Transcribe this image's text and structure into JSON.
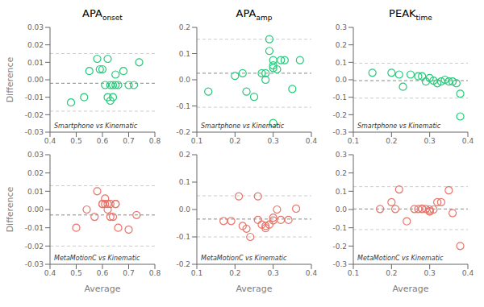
{
  "chart_data": [
    {
      "type": "scatter",
      "title": "APA",
      "subtitle": "onset",
      "annotations": [
        "Smartphone vs Kinematic"
      ],
      "ylabel": "Difference",
      "color": "#26c97a",
      "grid": false,
      "xlim": [
        0.4,
        0.8
      ],
      "ylim": [
        -0.03,
        0.03
      ],
      "xticks": [
        0.4,
        0.5,
        0.6,
        0.7,
        0.8
      ],
      "yticks": [
        -0.03,
        -0.02,
        -0.01,
        {
          "value": 0,
          "label": "0.00"
        },
        0.01,
        0.02,
        0.03
      ],
      "mean_line": -0.002,
      "upper_loa": 0.015,
      "lower_loa": -0.018,
      "x": [
        0.48,
        0.53,
        0.55,
        0.58,
        0.59,
        0.6,
        0.61,
        0.62,
        0.62,
        0.63,
        0.63,
        0.64,
        0.64,
        0.65,
        0.65,
        0.66,
        0.68,
        0.7,
        0.72,
        0.74
      ],
      "values": [
        -0.013,
        -0.01,
        0.005,
        0.012,
        0.006,
        0.006,
        -0.003,
        0.012,
        -0.01,
        -0.003,
        -0.012,
        -0.003,
        -0.01,
        0.003,
        -0.003,
        -0.003,
        0.005,
        -0.003,
        -0.003,
        0.01
      ]
    },
    {
      "type": "scatter",
      "title": "APA",
      "subtitle": "amp",
      "annotations": [
        "Smartphone vs Kinematic"
      ],
      "color": "#26c97a",
      "grid": false,
      "xlim": [
        0.1,
        0.4
      ],
      "ylim": [
        -0.2,
        0.2
      ],
      "xticks": [
        0.1,
        0.2,
        0.3,
        0.4
      ],
      "yticks": [
        -0.2,
        -0.1,
        {
          "value": 0,
          "label": "0.0"
        },
        0.1,
        0.2
      ],
      "mean_line": 0.025,
      "upper_loa": 0.155,
      "lower_loa": -0.105,
      "x": [
        0.13,
        0.2,
        0.22,
        0.23,
        0.25,
        0.27,
        0.28,
        0.28,
        0.29,
        0.29,
        0.3,
        0.3,
        0.3,
        0.31,
        0.32,
        0.33,
        0.35,
        0.37,
        0.3
      ],
      "values": [
        -0.045,
        0.015,
        0.025,
        -0.045,
        -0.065,
        0.025,
        0.025,
        0.0,
        0.155,
        0.11,
        0.075,
        0.055,
        0.045,
        0.04,
        0.075,
        0.075,
        -0.035,
        0.075,
        -0.165
      ]
    },
    {
      "type": "scatter",
      "title": "PEAK",
      "subtitle": "time",
      "annotations": [
        "Smartphone vs Kinematic"
      ],
      "color": "#26c97a",
      "grid": false,
      "xlim": [
        0.1,
        0.4
      ],
      "ylim": [
        -0.3,
        0.3
      ],
      "xticks": [
        0.1,
        0.2,
        0.3,
        0.4
      ],
      "yticks": [
        -0.3,
        -0.2,
        -0.1,
        {
          "value": 0,
          "label": "0.0"
        },
        0.1,
        0.2,
        0.3
      ],
      "mean_line": -0.005,
      "upper_loa": 0.095,
      "lower_loa": -0.105,
      "x": [
        0.15,
        0.2,
        0.22,
        0.23,
        0.25,
        0.27,
        0.28,
        0.29,
        0.3,
        0.31,
        0.32,
        0.33,
        0.34,
        0.35,
        0.36,
        0.37,
        0.38,
        0.38
      ],
      "values": [
        0.04,
        0.04,
        0.03,
        -0.04,
        0.03,
        0.02,
        0.02,
        -0.01,
        0.01,
        -0.005,
        -0.02,
        -0.01,
        0.0,
        -0.01,
        -0.01,
        -0.02,
        -0.08,
        -0.21
      ]
    },
    {
      "type": "scatter",
      "annotations": [
        "MetaMotionC vs Kinematic"
      ],
      "xlabel": "Average",
      "ylabel": "Difference",
      "color": "#e8756a",
      "grid": false,
      "xlim": [
        0.4,
        0.8
      ],
      "ylim": [
        -0.03,
        0.03
      ],
      "xticks": [
        0.4,
        0.5,
        0.6,
        0.7,
        0.8
      ],
      "yticks": [
        -0.03,
        -0.02,
        -0.01,
        {
          "value": 0,
          "label": "0.00"
        },
        0.01,
        0.02,
        0.03
      ],
      "mean_line": -0.003,
      "upper_loa": 0.013,
      "lower_loa": -0.02,
      "x": [
        0.5,
        0.54,
        0.57,
        0.58,
        0.6,
        0.6,
        0.61,
        0.61,
        0.62,
        0.62,
        0.63,
        0.63,
        0.64,
        0.65,
        0.65,
        0.66,
        0.7,
        0.73
      ],
      "values": [
        -0.01,
        0.0,
        -0.004,
        0.01,
        0.003,
        0.003,
        0.003,
        0.006,
        0.003,
        0.0,
        -0.004,
        0.003,
        -0.004,
        0.003,
        0.003,
        -0.01,
        -0.011,
        -0.003
      ]
    },
    {
      "type": "scatter",
      "annotations": [
        "MetaMotionC vs Kinematic"
      ],
      "xlabel": "Average",
      "color": "#e8756a",
      "grid": false,
      "xlim": [
        0.1,
        0.4
      ],
      "ylim": [
        -0.2,
        0.2
      ],
      "xticks": [
        0.1,
        0.2,
        0.3,
        0.4
      ],
      "yticks": [
        -0.2,
        -0.1,
        {
          "value": 0,
          "label": "0.0"
        },
        0.1,
        0.2
      ],
      "mean_line": -0.035,
      "upper_loa": 0.05,
      "lower_loa": -0.1,
      "x": [
        0.17,
        0.19,
        0.21,
        0.22,
        0.23,
        0.24,
        0.26,
        0.26,
        0.27,
        0.28,
        0.28,
        0.29,
        0.3,
        0.3,
        0.31,
        0.32,
        0.34,
        0.36
      ],
      "values": [
        -0.042,
        -0.042,
        0.048,
        -0.06,
        -0.07,
        -0.1,
        0.048,
        -0.038,
        -0.055,
        -0.06,
        -0.068,
        -0.055,
        -0.04,
        -0.03,
        0.0,
        -0.038,
        -0.038,
        0.003
      ]
    },
    {
      "type": "scatter",
      "annotations": [
        "MetaMotionC vs Kinematic"
      ],
      "xlabel": "Average",
      "color": "#e8756a",
      "grid": false,
      "xlim": [
        0.1,
        0.4
      ],
      "ylim": [
        -0.3,
        0.3
      ],
      "xticks": [
        0.1,
        0.2,
        0.3,
        0.4
      ],
      "yticks": [
        -0.3,
        -0.2,
        -0.1,
        {
          "value": 0,
          "label": "0.0"
        },
        0.1,
        0.2,
        0.3
      ],
      "mean_line": 0.003,
      "upper_loa": 0.125,
      "lower_loa": -0.11,
      "x": [
        0.17,
        0.2,
        0.21,
        0.22,
        0.24,
        0.26,
        0.27,
        0.28,
        0.28,
        0.29,
        0.3,
        0.3,
        0.3,
        0.31,
        0.32,
        0.33,
        0.35,
        0.36,
        0.38
      ],
      "values": [
        0.003,
        0.04,
        0.003,
        0.11,
        -0.065,
        0.003,
        0.003,
        0.003,
        0.005,
        0.003,
        0.0,
        -0.01,
        -0.01,
        0.0,
        0.04,
        0.04,
        0.105,
        -0.02,
        -0.2
      ]
    }
  ]
}
